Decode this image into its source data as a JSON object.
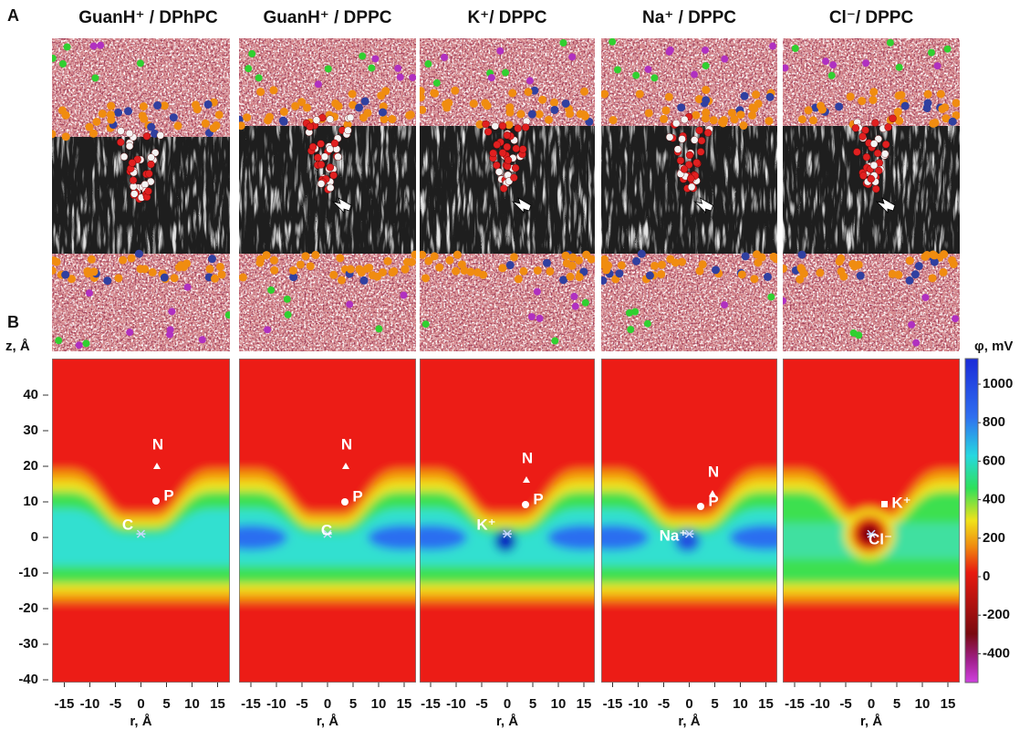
{
  "panel_a": {
    "label": "A",
    "titles": [
      "GuanH⁺ / DPhPC",
      "GuanH⁺ / DPPC",
      "K⁺/ DPPC",
      "Na⁺ / DPPC",
      "Cl⁻/ DPPC"
    ]
  },
  "panel_b": {
    "label": "B",
    "y_axis_label": "z, Å",
    "x_axis_label": "r, Å",
    "yticks": [
      40,
      30,
      20,
      10,
      0,
      -10,
      -20,
      -30,
      -40
    ],
    "xticks": [
      -15,
      -10,
      -5,
      0,
      5,
      10,
      15
    ],
    "colorbar": {
      "label": "φ, mV",
      "ticks": [
        1000,
        800,
        600,
        400,
        200,
        0,
        -200,
        -400
      ]
    },
    "annotations": [
      [
        "N",
        "P",
        "C"
      ],
      [
        "N",
        "P",
        "C"
      ],
      [
        "N",
        "P",
        "K⁺"
      ],
      [
        "N",
        "P",
        "Na⁺"
      ],
      [
        "K⁺",
        "Cl⁻"
      ]
    ]
  }
}
